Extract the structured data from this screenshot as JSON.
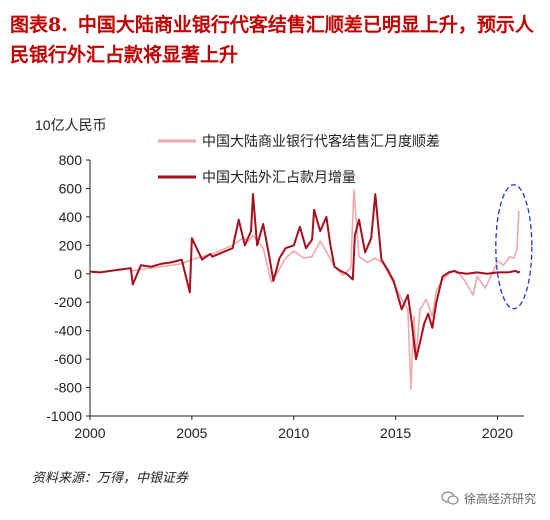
{
  "title": {
    "figure_no": "图表8.",
    "text": "中国大陆商业银行代客结售汇顺差已明显上升，预示人民银行外汇占款将显著上升"
  },
  "source": "资料来源：万得，中银证券",
  "watermark": "徐高经济研究",
  "colors": {
    "title": "#c00000",
    "settlement": "#f0a8ac",
    "fx_funds": "#a50f1e",
    "annotation": "#2233cc"
  },
  "chart_data": {
    "type": "line",
    "ylabel": "10亿人民币",
    "ylim": [
      -1000,
      800
    ],
    "yticks": [
      -1000,
      -800,
      -600,
      -400,
      -200,
      0,
      200,
      400,
      600,
      800
    ],
    "xlim": [
      2000,
      2021.3
    ],
    "xticks": [
      2000,
      2005,
      2010,
      2015,
      2020
    ],
    "grid": false,
    "legend": "top-right",
    "annotation": "dashed ellipse highlighting the most recent months (2020-2021)",
    "series": [
      {
        "name": "中国大陆商业银行代客结售汇月度顺差",
        "x": [
          2002.0,
          2002.5,
          2003.0,
          2003.5,
          2004.0,
          2004.5,
          2005.0,
          2005.5,
          2006.0,
          2006.5,
          2007.0,
          2007.5,
          2007.8,
          2008.0,
          2008.5,
          2008.9,
          2009.2,
          2009.6,
          2010.0,
          2010.5,
          2010.9,
          2011.3,
          2011.7,
          2012.0,
          2012.4,
          2012.8,
          2012.95,
          2013.2,
          2013.6,
          2014.0,
          2014.4,
          2014.8,
          2015.0,
          2015.3,
          2015.6,
          2015.75,
          2015.9,
          2016.0,
          2016.2,
          2016.5,
          2016.8,
          2017.0,
          2017.3,
          2017.7,
          2018.0,
          2018.4,
          2018.8,
          2019.0,
          2019.4,
          2019.8,
          2020.0,
          2020.3,
          2020.6,
          2020.8,
          2020.95,
          2021.05
        ],
        "y": [
          20,
          30,
          40,
          50,
          60,
          70,
          100,
          120,
          140,
          170,
          200,
          250,
          230,
          270,
          180,
          -60,
          10,
          110,
          160,
          110,
          120,
          230,
          130,
          50,
          -10,
          40,
          590,
          120,
          80,
          110,
          70,
          -40,
          -90,
          -180,
          -250,
          -810,
          -300,
          -580,
          -250,
          -180,
          -300,
          -120,
          -40,
          10,
          20,
          -50,
          -150,
          -20,
          -100,
          20,
          90,
          60,
          120,
          110,
          170,
          440
        ]
      },
      {
        "name": "中国大陆外汇占款月增量",
        "x": [
          2000.0,
          2000.5,
          2001.0,
          2001.5,
          2002.0,
          2002.1,
          2002.5,
          2003.0,
          2003.5,
          2004.0,
          2004.5,
          2004.9,
          2005.0,
          2005.5,
          2005.9,
          2006.0,
          2006.5,
          2007.0,
          2007.3,
          2007.6,
          2007.9,
          2008.0,
          2008.2,
          2008.5,
          2008.8,
          2009.0,
          2009.3,
          2009.6,
          2010.0,
          2010.3,
          2010.6,
          2010.9,
          2011.0,
          2011.3,
          2011.6,
          2011.8,
          2012.0,
          2012.3,
          2012.6,
          2012.9,
          2013.0,
          2013.2,
          2013.5,
          2013.8,
          2014.0,
          2014.3,
          2014.6,
          2014.9,
          2015.0,
          2015.3,
          2015.6,
          2015.8,
          2016.0,
          2016.2,
          2016.4,
          2016.6,
          2016.8,
          2017.0,
          2017.3,
          2017.6,
          2017.9,
          2018.0,
          2018.5,
          2019.0,
          2019.5,
          2020.0,
          2020.5,
          2020.9,
          2021.0,
          2021.1
        ],
        "y": [
          15,
          10,
          20,
          30,
          40,
          -75,
          60,
          50,
          70,
          80,
          100,
          -130,
          250,
          100,
          140,
          120,
          150,
          180,
          380,
          200,
          300,
          560,
          200,
          350,
          120,
          -50,
          110,
          180,
          200,
          330,
          180,
          240,
          450,
          300,
          400,
          200,
          50,
          20,
          0,
          -40,
          270,
          380,
          150,
          250,
          560,
          100,
          30,
          -50,
          -100,
          -250,
          -150,
          -350,
          -600,
          -480,
          -350,
          -280,
          -380,
          -200,
          -20,
          10,
          20,
          10,
          0,
          10,
          0,
          10,
          10,
          20,
          10,
          15
        ]
      }
    ]
  }
}
